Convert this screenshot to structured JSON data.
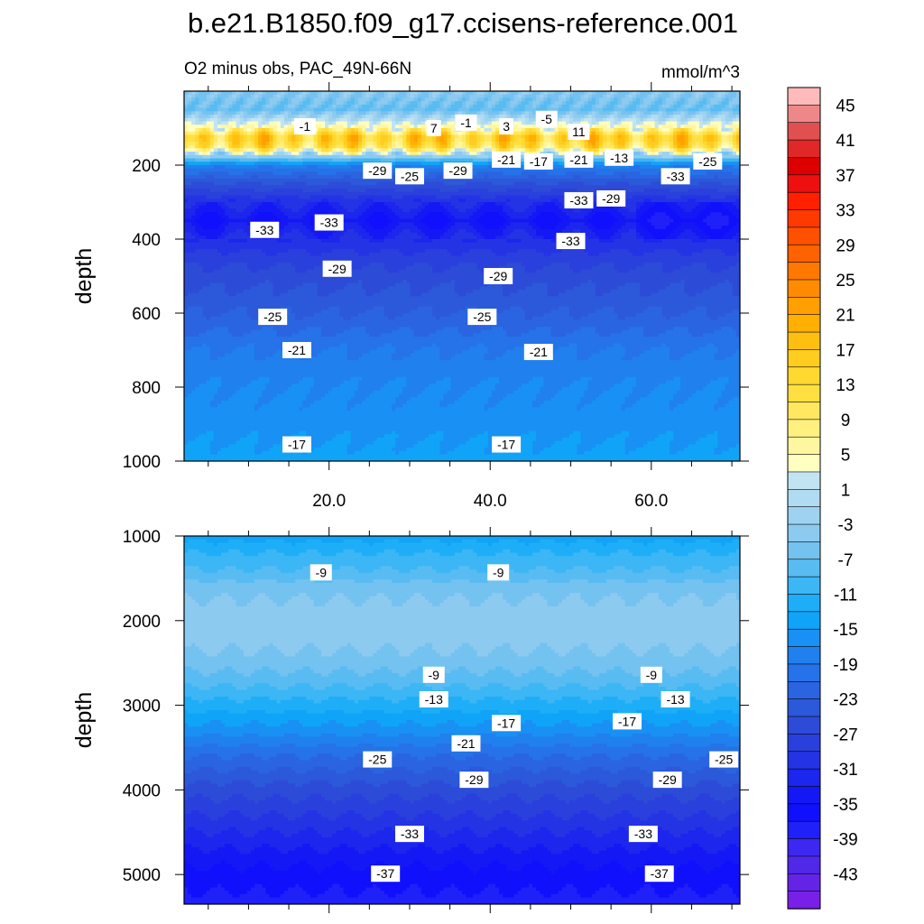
{
  "title": "b.e21.B1850.f09_g17.ccisens-reference.001",
  "upper_panel": {
    "left_string": "O2 minus obs, PAC_49N-66N",
    "right_string": "mmol/m^3",
    "ylabel": "depth"
  },
  "lower_panel": {
    "ylabel": "depth"
  },
  "chart_data": [
    {
      "type": "heatmap",
      "title": "O2 minus obs, PAC_49N-66N",
      "units": "mmol/m^3",
      "xlim": [
        2,
        71
      ],
      "ylim": [
        1000,
        0
      ],
      "ylabel": "depth",
      "xticks": [
        20,
        40,
        60
      ],
      "xticklabels": [
        "20.0",
        "40.0",
        "60.0"
      ],
      "yticks": [
        200,
        400,
        600,
        800,
        1000
      ],
      "yticklabels": [
        "200",
        "400",
        "600",
        "800",
        "1000"
      ],
      "profile_depths": [
        0,
        50,
        100,
        125,
        150,
        175,
        200,
        250,
        300,
        350,
        400,
        450,
        500,
        600,
        700,
        800,
        900,
        1000
      ],
      "profile_values": [
        -6,
        -9,
        4,
        14,
        10,
        -4,
        -20,
        -27,
        -33,
        -37,
        -33,
        -30,
        -28,
        -25,
        -21,
        -19,
        -18,
        -16
      ],
      "contour_labels": [
        {
          "x": 17,
          "d": 95,
          "v": "-1"
        },
        {
          "x": 33,
          "d": 100,
          "v": "7"
        },
        {
          "x": 37,
          "d": 85,
          "v": "-1"
        },
        {
          "x": 42,
          "d": 95,
          "v": "3"
        },
        {
          "x": 47,
          "d": 75,
          "v": "-5"
        },
        {
          "x": 51,
          "d": 110,
          "v": "11"
        },
        {
          "x": 42,
          "d": 185,
          "v": "-21"
        },
        {
          "x": 46,
          "d": 190,
          "v": "-17"
        },
        {
          "x": 51,
          "d": 185,
          "v": "-21"
        },
        {
          "x": 56,
          "d": 180,
          "v": "-13"
        },
        {
          "x": 67,
          "d": 190,
          "v": "-25"
        },
        {
          "x": 63,
          "d": 230,
          "v": "-33"
        },
        {
          "x": 26,
          "d": 215,
          "v": "-29"
        },
        {
          "x": 30,
          "d": 230,
          "v": "-25"
        },
        {
          "x": 36,
          "d": 215,
          "v": "-29"
        },
        {
          "x": 51,
          "d": 295,
          "v": "-33"
        },
        {
          "x": 55,
          "d": 290,
          "v": "-29"
        },
        {
          "x": 20,
          "d": 355,
          "v": "-33"
        },
        {
          "x": 12,
          "d": 375,
          "v": "-33"
        },
        {
          "x": 50,
          "d": 405,
          "v": "-33"
        },
        {
          "x": 21,
          "d": 480,
          "v": "-29"
        },
        {
          "x": 41,
          "d": 500,
          "v": "-29"
        },
        {
          "x": 13,
          "d": 610,
          "v": "-25"
        },
        {
          "x": 39,
          "d": 610,
          "v": "-25"
        },
        {
          "x": 16,
          "d": 700,
          "v": "-21"
        },
        {
          "x": 46,
          "d": 705,
          "v": "-21"
        },
        {
          "x": 16,
          "d": 955,
          "v": "-17"
        },
        {
          "x": 42,
          "d": 955,
          "v": "-17"
        }
      ]
    },
    {
      "type": "heatmap",
      "xlim": [
        2,
        71
      ],
      "ylim": [
        5350,
        1000
      ],
      "ylabel": "depth",
      "yticks": [
        1000,
        2000,
        3000,
        4000,
        5000
      ],
      "yticklabels": [
        "1000",
        "2000",
        "3000",
        "4000",
        "5000"
      ],
      "profile_depths": [
        1000,
        1200,
        1400,
        1600,
        1900,
        2200,
        2500,
        2700,
        3000,
        3300,
        3600,
        4000,
        4300,
        4600,
        4900,
        5200,
        5350
      ],
      "profile_values": [
        -16,
        -13,
        -11,
        -8,
        -6,
        -6,
        -8,
        -10,
        -14,
        -18,
        -23,
        -28,
        -31,
        -34,
        -37,
        -39,
        -40
      ],
      "contour_labels": [
        {
          "x": 19,
          "d": 1430,
          "v": "-9"
        },
        {
          "x": 41,
          "d": 1430,
          "v": "-9"
        },
        {
          "x": 33,
          "d": 2640,
          "v": "-9"
        },
        {
          "x": 60,
          "d": 2640,
          "v": "-9"
        },
        {
          "x": 33,
          "d": 2930,
          "v": "-13"
        },
        {
          "x": 63,
          "d": 2930,
          "v": "-13"
        },
        {
          "x": 42,
          "d": 3210,
          "v": "-17"
        },
        {
          "x": 57,
          "d": 3190,
          "v": "-17"
        },
        {
          "x": 37,
          "d": 3450,
          "v": "-21"
        },
        {
          "x": 26,
          "d": 3640,
          "v": "-25"
        },
        {
          "x": 69,
          "d": 3640,
          "v": "-25"
        },
        {
          "x": 38,
          "d": 3880,
          "v": "-29"
        },
        {
          "x": 62,
          "d": 3880,
          "v": "-29"
        },
        {
          "x": 30,
          "d": 4520,
          "v": "-33"
        },
        {
          "x": 59,
          "d": 4520,
          "v": "-33"
        },
        {
          "x": 27,
          "d": 4990,
          "v": "-37"
        },
        {
          "x": 61,
          "d": 4990,
          "v": "-37"
        }
      ]
    }
  ],
  "colorbar": {
    "labels": [
      "45",
      "41",
      "37",
      "33",
      "29",
      "25",
      "21",
      "17",
      "13",
      "9",
      "5",
      "1",
      "-3",
      "-7",
      "-11",
      "-15",
      "-19",
      "-23",
      "-27",
      "-31",
      "-35",
      "-39",
      "-43"
    ],
    "colors": [
      "#ffbbbb",
      "#ee8888",
      "#e05050",
      "#e02828",
      "#dd0000",
      "#ee1010",
      "#ff2000",
      "#ff3a00",
      "#ff5000",
      "#ff6200",
      "#ff7800",
      "#ff8c00",
      "#ff9f00",
      "#ffb000",
      "#ffbf10",
      "#ffcc20",
      "#ffd830",
      "#ffe040",
      "#ffe860",
      "#fff080",
      "#fff6a0",
      "#ffffc0",
      "#c2e4f2",
      "#b0dcf2",
      "#9ed2f0",
      "#8ccaf0",
      "#74c2f0",
      "#58bcf2",
      "#3cb6f5",
      "#1eaef8",
      "#10a4f8",
      "#1890f4",
      "#2080ee",
      "#2672e8",
      "#2a64e0",
      "#2c58da",
      "#2c4cd8",
      "#2a40dc",
      "#2434e4",
      "#1c26ec",
      "#1418f4",
      "#1010fc",
      "#2020f8",
      "#3c28f0",
      "#5028e8",
      "#6424e8",
      "#7820e8"
    ]
  }
}
